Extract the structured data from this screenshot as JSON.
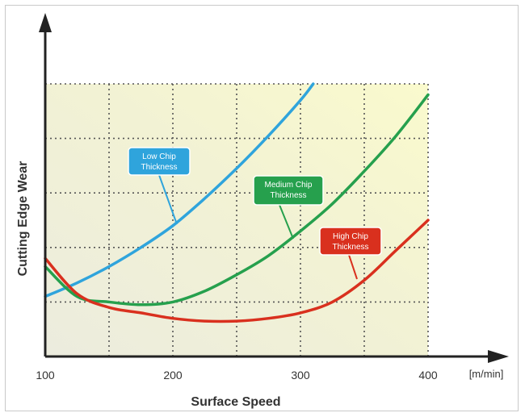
{
  "chart_data": {
    "type": "line",
    "xlabel": "Surface Speed",
    "ylabel": "Cutting Edge Wear",
    "x_unit": "[m/min]",
    "xlim": [
      100,
      400
    ],
    "ylim": [
      0,
      10
    ],
    "grid": true,
    "x_ticks": [
      100,
      200,
      300,
      400
    ],
    "y_ticks": [],
    "series": [
      {
        "name": "Low Chip\nThickness",
        "color": "#2fa4dc",
        "x": [
          100,
          125,
          150,
          175,
          200,
          225,
          250,
          275,
          300,
          310
        ],
        "y": [
          2.2,
          2.7,
          3.3,
          4.0,
          4.8,
          5.8,
          6.9,
          8.1,
          9.4,
          10.0
        ]
      },
      {
        "name": "Medium Chip\nThickness",
        "color": "#26a04d",
        "x": [
          100,
          125,
          150,
          175,
          200,
          225,
          250,
          275,
          300,
          325,
          350,
          375,
          400
        ],
        "y": [
          3.3,
          2.2,
          2.0,
          1.9,
          2.0,
          2.4,
          3.0,
          3.7,
          4.6,
          5.6,
          6.8,
          8.1,
          9.6
        ]
      },
      {
        "name": "High Chip\nThickness",
        "color": "#d9301e",
        "x": [
          100,
          125,
          150,
          175,
          200,
          225,
          250,
          275,
          300,
          325,
          350,
          375,
          400
        ],
        "y": [
          3.6,
          2.3,
          1.8,
          1.6,
          1.4,
          1.3,
          1.3,
          1.4,
          1.6,
          2.0,
          2.8,
          3.9,
          5.0
        ]
      }
    ]
  }
}
